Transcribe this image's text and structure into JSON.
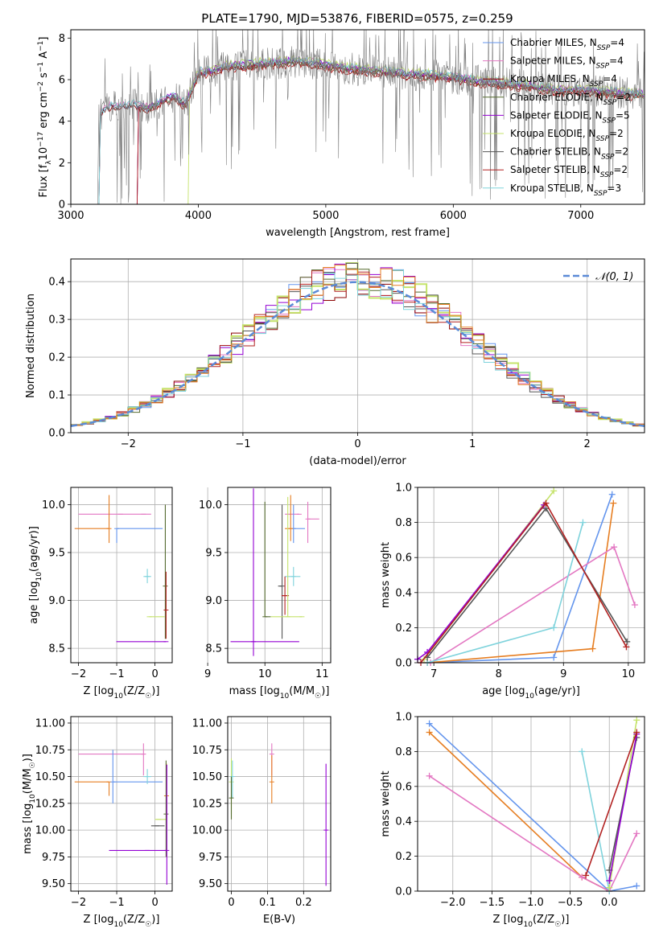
{
  "figure": {
    "title": "PLATE=1790, MJD=53876, FIBERID=0575, z=0.259"
  },
  "chart_data": [
    {
      "id": "spectrum",
      "type": "line",
      "xlabel": "wavelength [Angstrom, rest frame]",
      "ylabel": "Flux [f_λ10^-17 erg cm^-2 s^-1 A^-1]",
      "xlim": [
        3000,
        7500
      ],
      "ylim": [
        0,
        8.4
      ],
      "xticks": [
        3000,
        4000,
        5000,
        6000,
        7000
      ],
      "yticks": [
        0,
        2,
        4,
        6,
        8
      ],
      "grid": false,
      "legend_position": "top-right",
      "observed_color": "#808080",
      "series": [
        {
          "name": "Chabrier MILES, N_SSP=4",
          "color": "#6495ed",
          "start": 3220,
          "offset": 0.0
        },
        {
          "name": "Salpeter MILES, N_SSP=4",
          "color": "#e377c2",
          "start": 3220,
          "offset": 0.08
        },
        {
          "name": "Kroupa MILES, N_SSP=4",
          "color": "#8b0000",
          "start": 3220,
          "offset": -0.1
        },
        {
          "name": "Chabrier ELODIE, N_SSP=2",
          "color": "#556b2f",
          "start": 3520,
          "offset": -0.05
        },
        {
          "name": "Salpeter ELODIE, N_SSP=5",
          "color": "#9400d3",
          "start": 3520,
          "offset": 0.05
        },
        {
          "name": "Kroupa ELODIE, N_SSP=2",
          "color": "#c5e36b",
          "start": 3920,
          "offset": 0.15
        },
        {
          "name": "Chabrier STELIB, N_SSP=2",
          "color": "#555555",
          "start": 3220,
          "offset": -0.02
        },
        {
          "name": "Salpeter STELIB, N_SSP=2",
          "color": "#b22222",
          "start": 3520,
          "offset": -0.15
        },
        {
          "name": "Kroupa STELIB, N_SSP=3",
          "color": "#7fd3dc",
          "start": 3220,
          "offset": 0.1
        }
      ],
      "continuum": {
        "wavelength": [
          3220,
          3300,
          3400,
          3500,
          3600,
          3700,
          3800,
          3900,
          4000,
          4100,
          4200,
          4400,
          4600,
          4800,
          5000,
          5200,
          5400,
          5600,
          5800,
          6000,
          6200,
          6400,
          6600,
          6800,
          7000,
          7200,
          7400
        ],
        "flux": [
          4.3,
          4.7,
          4.7,
          4.8,
          4.6,
          4.9,
          5.2,
          4.8,
          6.3,
          6.4,
          6.6,
          6.7,
          6.8,
          6.9,
          6.7,
          6.5,
          6.4,
          6.3,
          6.2,
          6.1,
          5.9,
          5.8,
          5.7,
          5.5,
          5.5,
          5.4,
          5.3
        ]
      }
    },
    {
      "id": "residuals",
      "type": "histogram",
      "xlabel": "(data-model)/error",
      "ylabel": "Normed distribution",
      "xlim": [
        -2.5,
        2.5
      ],
      "ylim": [
        0,
        0.46
      ],
      "xticks": [
        -2,
        -1,
        0,
        1,
        2
      ],
      "yticks": [
        0.0,
        0.1,
        0.2,
        0.3,
        0.4
      ],
      "grid": true,
      "legend_position": "top-right",
      "legend_label": "𝒩(0, 1)",
      "reference_color": "#5b8ad6",
      "bin_width": 0.1,
      "series_colors": [
        "#6495ed",
        "#e377c2",
        "#8b0000",
        "#556b2f",
        "#9400d3",
        "#c5e36b",
        "#555555",
        "#b22222",
        "#7fd3dc",
        "#e67e22"
      ]
    },
    {
      "id": "age_vs_Z",
      "type": "errorbar",
      "xlabel": "Z [log10(Z/Z☉)]",
      "ylabel": "age  [log10(age/yr)]",
      "xlim": [
        -2.2,
        0.45
      ],
      "ylim": [
        8.35,
        10.18
      ],
      "xticks": [
        -2,
        -1,
        0
      ],
      "yticks": [
        8.5,
        9.0,
        9.5,
        10.0
      ],
      "grid": true,
      "points": [
        {
          "x": -0.3,
          "y": 9.9,
          "xerr": [
            1.7,
            0.2
          ],
          "yerr": [
            0.0,
            0.0
          ],
          "color": "#e377c2"
        },
        {
          "x": -0.9,
          "y": 9.9,
          "xerr": [
            0.0,
            0.0
          ],
          "yerr": [
            0.0,
            0.0
          ],
          "color": "#e377c2"
        },
        {
          "x": -1.2,
          "y": 9.75,
          "xerr": [
            0.9,
            0.0
          ],
          "yerr": [
            0.15,
            0.35
          ],
          "color": "#e67e22"
        },
        {
          "x": -1.0,
          "y": 9.75,
          "xerr": [
            0.0,
            1.2
          ],
          "yerr": [
            0.15,
            0.0
          ],
          "color": "#6495ed"
        },
        {
          "x": -0.2,
          "y": 9.25,
          "xerr": [
            0.1,
            0.1
          ],
          "yerr": [
            0.07,
            0.08
          ],
          "color": "#7fd3dc"
        },
        {
          "x": -0.15,
          "y": 8.83,
          "xerr": [
            0.0,
            0.4
          ],
          "yerr": [
            0.0,
            0.0
          ],
          "color": "#c5e36b"
        },
        {
          "x": 0.27,
          "y": 9.15,
          "xerr": [
            0.0,
            0.0
          ],
          "yerr": [
            0.55,
            0.85
          ],
          "color": "#556b2f"
        },
        {
          "x": 0.29,
          "y": 8.9,
          "xerr": [
            0.0,
            0.0
          ],
          "yerr": [
            0.3,
            0.4
          ],
          "color": "#b22222"
        },
        {
          "x": 0.29,
          "y": 8.57,
          "xerr": [
            1.3,
            0.0
          ],
          "yerr": [
            0.0,
            0.0
          ],
          "color": "#9400d3"
        }
      ]
    },
    {
      "id": "age_vs_mass",
      "type": "errorbar",
      "xlabel": "mass [log10(M/M☉)]",
      "ylabel": "",
      "xlim": [
        9.35,
        11.15
      ],
      "ylim": [
        8.35,
        10.18
      ],
      "xticks": [
        9,
        10,
        11
      ],
      "yticks": [
        8.5,
        9.0,
        9.5,
        10.0
      ],
      "grid": true,
      "points": [
        {
          "x": 10.6,
          "y": 9.9,
          "xerr": [
            0.25,
            0.0
          ],
          "yerr": [
            0.0,
            0.0
          ],
          "color": "#e377c2"
        },
        {
          "x": 10.75,
          "y": 9.85,
          "xerr": [
            0.0,
            0.2
          ],
          "yerr": [
            0.25,
            0.18
          ],
          "color": "#e377c2"
        },
        {
          "x": 10.5,
          "y": 9.75,
          "xerr": [
            0.0,
            0.2
          ],
          "yerr": [
            0.15,
            0.25
          ],
          "color": "#6495ed"
        },
        {
          "x": 10.45,
          "y": 9.75,
          "xerr": [
            0.1,
            0.0
          ],
          "yerr": [
            0.13,
            0.35
          ],
          "color": "#e67e22"
        },
        {
          "x": 10.5,
          "y": 9.25,
          "xerr": [
            0.15,
            0.12
          ],
          "yerr": [
            0.1,
            0.1
          ],
          "color": "#7fd3dc"
        },
        {
          "x": 10.3,
          "y": 9.15,
          "xerr": [
            0.07,
            0.0
          ],
          "yerr": [
            0.55,
            0.85
          ],
          "color": "#555555"
        },
        {
          "x": 10.35,
          "y": 9.05,
          "xerr": [
            0.06,
            0.07
          ],
          "yerr": [
            0.2,
            0.2
          ],
          "color": "#b22222"
        },
        {
          "x": 10.65,
          "y": 8.83,
          "xerr": [
            0.55,
            0.0
          ],
          "yerr": [
            0.0,
            0.0
          ],
          "color": "#c5e36b"
        },
        {
          "x": 10.0,
          "y": 8.83,
          "xerr": [
            0.0,
            0.1
          ],
          "yerr": [
            0.0,
            1.2
          ],
          "color": "#556b2f"
        },
        {
          "x": 10.4,
          "y": 8.83,
          "xerr": [
            0.0,
            0.0
          ],
          "yerr": [
            0.0,
            1.25
          ],
          "color": "#c5e36b"
        },
        {
          "x": 9.8,
          "y": 8.57,
          "xerr": [
            0.4,
            0.8
          ],
          "yerr": [
            0.15,
            1.6
          ],
          "color": "#9400d3"
        }
      ]
    },
    {
      "id": "mass_weight_vs_age",
      "type": "line",
      "xlabel": "age  [log10(age/yr)]",
      "ylabel": "mass weight",
      "xlim": [
        6.75,
        10.25
      ],
      "ylim": [
        0.0,
        1.0
      ],
      "xticks": [
        7,
        8,
        9,
        10
      ],
      "yticks": [
        0.0,
        0.2,
        0.4,
        0.6,
        0.8,
        1.0
      ],
      "grid": true,
      "series": [
        {
          "color": "#6495ed",
          "x": [
            6.9,
            8.85,
            9.75
          ],
          "y": [
            0.0,
            0.03,
            0.96
          ]
        },
        {
          "color": "#e67e22",
          "x": [
            6.9,
            9.45,
            9.77
          ],
          "y": [
            0.0,
            0.08,
            0.91
          ]
        },
        {
          "color": "#e377c2",
          "x": [
            6.95,
            9.78,
            10.1
          ],
          "y": [
            0.0,
            0.66,
            0.33
          ]
        },
        {
          "color": "#7fd3dc",
          "x": [
            6.9,
            8.85,
            9.3
          ],
          "y": [
            0.0,
            0.2,
            0.8
          ]
        },
        {
          "color": "#c5e36b",
          "x": [
            6.85,
            8.85
          ],
          "y": [
            0.02,
            0.98
          ]
        },
        {
          "color": "#555555",
          "x": [
            6.9,
            8.73,
            9.98
          ],
          "y": [
            0.03,
            0.88,
            0.12
          ]
        },
        {
          "color": "#9400d3",
          "x": [
            6.75,
            6.9,
            8.7
          ],
          "y": [
            0.02,
            0.06,
            0.9
          ]
        },
        {
          "color": "#b22222",
          "x": [
            6.8,
            8.73,
            9.97
          ],
          "y": [
            0.0,
            0.91,
            0.09
          ]
        }
      ]
    },
    {
      "id": "mass_vs_Z",
      "type": "errorbar",
      "xlabel": "Z [log10(Z/Z☉)]",
      "ylabel": "mass [log10(M/M☉)]",
      "xlim": [
        -2.2,
        0.45
      ],
      "ylim": [
        9.43,
        11.06
      ],
      "xticks": [
        -2,
        -1,
        0
      ],
      "yticks": [
        9.5,
        9.75,
        10.0,
        10.25,
        10.5,
        10.75,
        11.0
      ],
      "grid": true,
      "points": [
        {
          "x": -0.3,
          "y": 10.71,
          "xerr": [
            1.7,
            0.0
          ],
          "yerr": [
            0.0,
            0.0
          ],
          "color": "#e377c2"
        },
        {
          "x": -0.3,
          "y": 10.71,
          "xerr": [
            0.0,
            0.0
          ],
          "yerr": [
            0.2,
            0.1
          ],
          "color": "#e377c2"
        },
        {
          "x": -1.2,
          "y": 10.45,
          "xerr": [
            0.9,
            0.0
          ],
          "yerr": [
            0.13,
            0.0
          ],
          "color": "#e67e22"
        },
        {
          "x": -1.1,
          "y": 10.45,
          "xerr": [
            0.0,
            1.3
          ],
          "yerr": [
            0.2,
            0.3
          ],
          "color": "#6495ed"
        },
        {
          "x": -0.2,
          "y": 10.5,
          "xerr": [
            0.1,
            0.1
          ],
          "yerr": [
            0.07,
            0.07
          ],
          "color": "#7fd3dc"
        },
        {
          "x": 0.3,
          "y": 10.32,
          "xerr": [
            0.0,
            0.0
          ],
          "yerr": [
            0.2,
            0.3
          ],
          "color": "#e67e22"
        },
        {
          "x": 0.1,
          "y": 10.1,
          "xerr": [
            0.1,
            0.2
          ],
          "yerr": [
            0.0,
            0.0
          ],
          "color": "#c5e36b"
        },
        {
          "x": 0.05,
          "y": 10.04,
          "xerr": [
            0.15,
            0.2
          ],
          "yerr": [
            0.0,
            0.0
          ],
          "color": "#555555"
        },
        {
          "x": 0.29,
          "y": 10.15,
          "xerr": [
            0.0,
            0.0
          ],
          "yerr": [
            0.4,
            0.5
          ],
          "color": "#556b2f"
        },
        {
          "x": -0.2,
          "y": 9.81,
          "xerr": [
            1.0,
            0.5
          ],
          "yerr": [
            0.0,
            0.0
          ],
          "color": "#9400d3"
        },
        {
          "x": 0.31,
          "y": 9.81,
          "xerr": [
            0.0,
            0.0
          ],
          "yerr": [
            0.32,
            0.8
          ],
          "color": "#9400d3"
        }
      ]
    },
    {
      "id": "mass_vs_ebv",
      "type": "errorbar",
      "xlabel": "E(B-V)",
      "ylabel": "",
      "xlim": [
        -0.01,
        0.275
      ],
      "ylim": [
        9.43,
        11.06
      ],
      "xticks": [
        0.0,
        0.1,
        0.2
      ],
      "yticks": [
        9.5,
        9.75,
        10.0,
        10.25,
        10.5,
        10.75,
        11.0
      ],
      "grid": true,
      "points": [
        {
          "x": 0.0,
          "y": 10.45,
          "xerr": [
            0.0,
            0.0
          ],
          "yerr": [
            0.3,
            0.22
          ],
          "color": "#c5e36b"
        },
        {
          "x": 0.003,
          "y": 10.5,
          "xerr": [
            0.0,
            0.0
          ],
          "yerr": [
            0.2,
            0.15
          ],
          "color": "#7fd3dc"
        },
        {
          "x": 0.0,
          "y": 10.3,
          "xerr": [
            0.0,
            0.0
          ],
          "yerr": [
            0.2,
            0.2
          ],
          "color": "#556b2f"
        },
        {
          "x": 0.112,
          "y": 10.71,
          "xerr": [
            0.0,
            0.0
          ],
          "yerr": [
            0.2,
            0.1
          ],
          "color": "#e377c2"
        },
        {
          "x": 0.112,
          "y": 10.45,
          "xerr": [
            0.0,
            0.0
          ],
          "yerr": [
            0.2,
            0.25
          ],
          "color": "#e67e22"
        },
        {
          "x": 0.262,
          "y": 10.0,
          "xerr": [
            0.0,
            0.0
          ],
          "yerr": [
            0.52,
            0.62
          ],
          "color": "#9400d3"
        }
      ]
    },
    {
      "id": "mass_weight_vs_Z",
      "type": "line",
      "xlabel": "Z [log10(Z/Z☉)]",
      "ylabel": "mass weight",
      "xlim": [
        -2.45,
        0.45
      ],
      "ylim": [
        0.0,
        1.0
      ],
      "xticks": [
        -2.0,
        -1.5,
        -1.0,
        -0.5,
        0.0
      ],
      "yticks": [
        0.0,
        0.2,
        0.4,
        0.6,
        0.8,
        1.0
      ],
      "grid": true,
      "series": [
        {
          "color": "#6495ed",
          "x": [
            -2.3,
            0.0,
            0.35
          ],
          "y": [
            0.96,
            0.0,
            0.03
          ]
        },
        {
          "color": "#e67e22",
          "x": [
            -2.3,
            -0.35,
            0.0
          ],
          "y": [
            0.91,
            0.08,
            0.0
          ]
        },
        {
          "color": "#e377c2",
          "x": [
            -2.3,
            -0.35,
            0.0,
            0.35
          ],
          "y": [
            0.66,
            0.08,
            0.0,
            0.33
          ]
        },
        {
          "color": "#7fd3dc",
          "x": [
            -0.35,
            0.0
          ],
          "y": [
            0.8,
            0.0
          ]
        },
        {
          "color": "#c5e36b",
          "x": [
            0.0,
            0.35
          ],
          "y": [
            0.02,
            0.98
          ]
        },
        {
          "color": "#555555",
          "x": [
            0.0,
            0.35
          ],
          "y": [
            0.12,
            0.88
          ]
        },
        {
          "color": "#9400d3",
          "x": [
            0.0,
            0.35
          ],
          "y": [
            0.06,
            0.9
          ]
        },
        {
          "color": "#b22222",
          "x": [
            -0.3,
            0.35
          ],
          "y": [
            0.09,
            0.91
          ]
        }
      ]
    }
  ]
}
